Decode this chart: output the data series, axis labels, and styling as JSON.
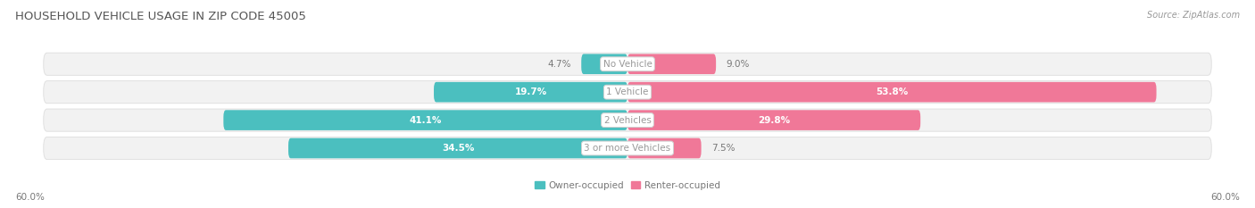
{
  "title": "HOUSEHOLD VEHICLE USAGE IN ZIP CODE 45005",
  "source": "Source: ZipAtlas.com",
  "categories": [
    "No Vehicle",
    "1 Vehicle",
    "2 Vehicles",
    "3 or more Vehicles"
  ],
  "owner_values": [
    4.7,
    19.7,
    41.1,
    34.5
  ],
  "renter_values": [
    9.0,
    53.8,
    29.8,
    7.5
  ],
  "owner_color": "#4BBFBF",
  "renter_color": "#F07898",
  "owner_label": "Owner-occupied",
  "renter_label": "Renter-occupied",
  "x_max": 60.0,
  "axis_label_left": "60.0%",
  "axis_label_right": "60.0%",
  "background_color": "#FFFFFF",
  "row_bg_color": "#F2F2F2",
  "row_border_color": "#DDDDDD",
  "center_label_color": "#999999",
  "title_color": "#555555",
  "source_color": "#999999",
  "axis_tick_color": "#777777",
  "small_label_color": "#777777",
  "white_label_color": "#FFFFFF",
  "owner_threshold": 12,
  "renter_threshold": 12
}
